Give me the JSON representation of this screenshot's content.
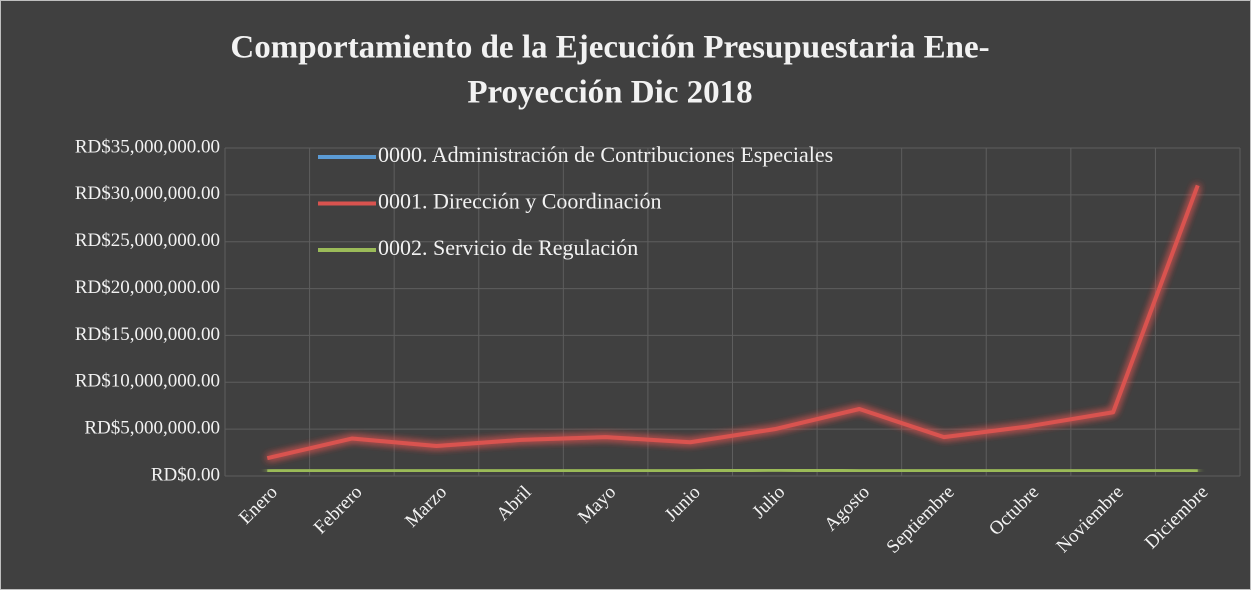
{
  "chart_data": {
    "type": "line",
    "title": [
      "Comportamiento de la Ejecución Presupuestaria Ene-",
      "Proyección Dic 2018"
    ],
    "categories": [
      "Enero",
      "Febrero",
      "Marzo",
      "Abril",
      "Mayo",
      "Junio",
      "Julio",
      "Agosto",
      "Septiembre",
      "Octubre",
      "Noviembre",
      "Diciembre"
    ],
    "series": [
      {
        "name": "0000. Administración de Contribuciones Especiales",
        "color": "#5b9bd5",
        "values": [
          0,
          0,
          0,
          0,
          0,
          0,
          0,
          0,
          0,
          0,
          0,
          0
        ]
      },
      {
        "name": "0001. Dirección y Coordinación",
        "color": "#d9534f",
        "values": [
          1900000,
          4000000,
          3200000,
          3850000,
          4150000,
          3600000,
          5000000,
          7150000,
          4150000,
          5300000,
          6800000,
          31000000
        ]
      },
      {
        "name": "0002. Servicio de Regulación",
        "color": "#9bbb59",
        "values": [
          500000,
          500000,
          500000,
          500000,
          500000,
          500000,
          700000,
          500000,
          500000,
          500000,
          500000,
          500000
        ]
      }
    ],
    "ylim": [
      0,
      35000000
    ],
    "yticks": [
      {
        "value": 0,
        "label": "RD$0.00"
      },
      {
        "value": 5000000,
        "label": "RD$5,000,000.00"
      },
      {
        "value": 10000000,
        "label": "RD$10,000,000.00"
      },
      {
        "value": 15000000,
        "label": "RD$15,000,000.00"
      },
      {
        "value": 20000000,
        "label": "RD$20,000,000.00"
      },
      {
        "value": 25000000,
        "label": "RD$25,000,000.00"
      },
      {
        "value": 30000000,
        "label": "RD$30,000,000.00"
      },
      {
        "value": 35000000,
        "label": "RD$35,000,000.00"
      }
    ],
    "grid": true,
    "legend": "top-left"
  }
}
